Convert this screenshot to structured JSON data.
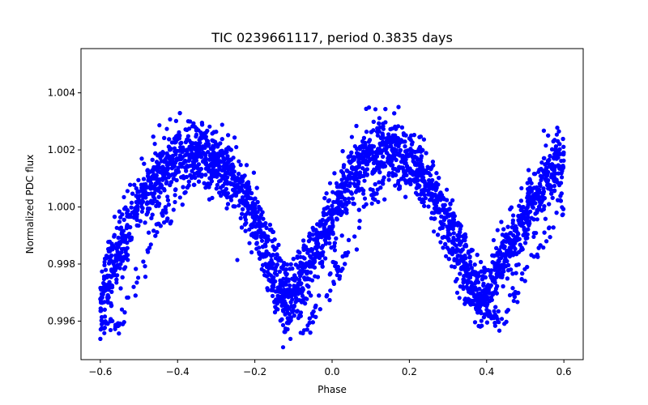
{
  "chart_data": {
    "type": "scatter",
    "title": "TIC 0239661117, period 0.3835 days",
    "xlabel": "Phase",
    "ylabel": "Normalized PDC flux",
    "xlim": [
      -0.65,
      0.65
    ],
    "ylim": [
      0.99465,
      1.00555
    ],
    "xticks": [
      -0.6,
      -0.4,
      -0.2,
      0.0,
      0.2,
      0.4,
      0.6
    ],
    "xtick_labels": [
      "−0.6",
      "−0.4",
      "−0.2",
      "0.0",
      "0.2",
      "0.4",
      "0.6"
    ],
    "yticks": [
      0.996,
      0.998,
      1.0,
      1.002,
      1.004
    ],
    "ytick_labels": [
      "0.996",
      "0.998",
      "1.000",
      "1.002",
      "1.004"
    ],
    "grid": false,
    "marker_color": "#0000ff",
    "series": [
      {
        "name": "PDC flux",
        "description_of_trend": "Phase-folded light curve, two periods shown; maxima near phase -0.35 and 0.15, minima near -0.12 and 0.38",
        "model_phase": [
          -0.6,
          -0.5,
          -0.45,
          -0.4,
          -0.35,
          -0.3,
          -0.25,
          -0.2,
          -0.15,
          -0.12,
          -0.1,
          -0.05,
          0.0,
          0.05,
          0.1,
          0.15,
          0.2,
          0.25,
          0.3,
          0.35,
          0.38,
          0.4,
          0.45,
          0.5,
          0.55,
          0.6
        ],
        "model_flux": [
          0.99675,
          1.0002,
          1.0011,
          1.0018,
          1.002,
          1.0017,
          1.0009,
          0.9996,
          0.99735,
          0.99665,
          0.99695,
          0.9982,
          0.99965,
          1.0011,
          1.0019,
          1.0021,
          1.0017,
          1.0008,
          0.9994,
          0.99745,
          0.99675,
          0.997,
          0.9984,
          0.9997,
          1.0009,
          1.0018
        ],
        "scatter_sigma": 0.00055,
        "n_points": 5200
      }
    ]
  }
}
